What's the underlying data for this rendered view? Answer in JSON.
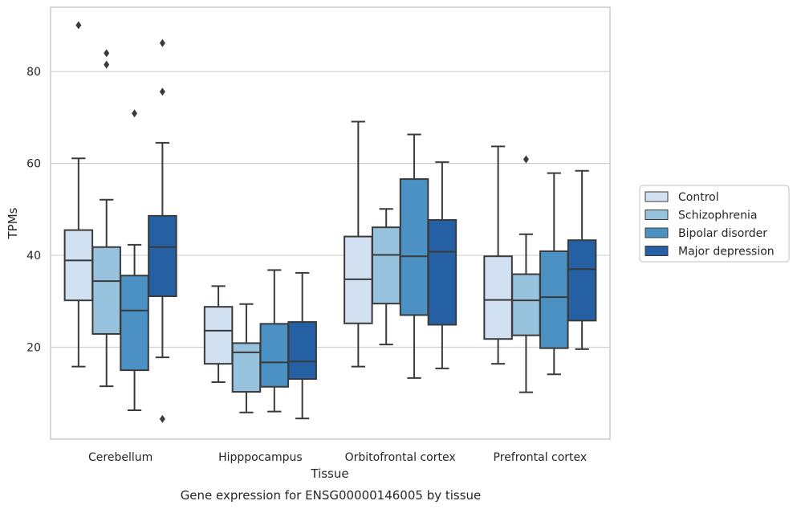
{
  "chart_data": {
    "type": "box",
    "title": "",
    "caption": "Gene expression for ENSG00000146005 by tissue",
    "xlabel": "Tissue",
    "ylabel": "TPMs",
    "ylim": [
      0,
      94
    ],
    "yticks": [
      20,
      40,
      60,
      80
    ],
    "grid": "horizontal",
    "legend_position": "right",
    "colors": {
      "Control": "#d2e1f1",
      "Schizophrenia": "#98c3df",
      "Bipolar disorder": "#4b91c3",
      "Major depression": "#2460a3",
      "line": "#3a3a3a",
      "grid": "#d0d0d0",
      "frame": "#cccccc"
    },
    "categories": [
      "Cerebellum",
      "Hipppocampus",
      "Orbitofrontal cortex",
      "Prefrontal cortex"
    ],
    "series": [
      {
        "name": "Control",
        "boxes": [
          {
            "whisker_low": 15.8,
            "q1": 30.2,
            "median": 38.9,
            "q3": 45.5,
            "whisker_high": 61.1,
            "outliers": [
              90.1
            ]
          },
          {
            "whisker_low": 12.4,
            "q1": 16.4,
            "median": 23.6,
            "q3": 28.8,
            "whisker_high": 33.3,
            "outliers": []
          },
          {
            "whisker_low": 15.8,
            "q1": 25.2,
            "median": 34.8,
            "q3": 44.1,
            "whisker_high": 69.1,
            "outliers": []
          },
          {
            "whisker_low": 16.4,
            "q1": 21.8,
            "median": 30.3,
            "q3": 39.8,
            "whisker_high": 63.7,
            "outliers": []
          }
        ]
      },
      {
        "name": "Schizophrenia",
        "boxes": [
          {
            "whisker_low": 11.5,
            "q1": 22.9,
            "median": 34.4,
            "q3": 41.8,
            "whisker_high": 52.1,
            "outliers": [
              84.0,
              81.5
            ]
          },
          {
            "whisker_low": 5.8,
            "q1": 10.3,
            "median": 18.9,
            "q3": 20.9,
            "whisker_high": 29.4,
            "outliers": []
          },
          {
            "whisker_low": 20.6,
            "q1": 29.5,
            "median": 40.1,
            "q3": 46.1,
            "whisker_high": 50.1,
            "outliers": []
          },
          {
            "whisker_low": 10.2,
            "q1": 22.6,
            "median": 30.2,
            "q3": 35.9,
            "whisker_high": 44.6,
            "outliers": [
              60.9
            ]
          }
        ]
      },
      {
        "name": "Bipolar disorder",
        "boxes": [
          {
            "whisker_low": 6.3,
            "q1": 15.0,
            "median": 28.0,
            "q3": 35.6,
            "whisker_high": 42.3,
            "outliers": [
              70.9
            ]
          },
          {
            "whisker_low": 6.0,
            "q1": 11.4,
            "median": 16.7,
            "q3": 25.1,
            "whisker_high": 36.8,
            "outliers": []
          },
          {
            "whisker_low": 13.3,
            "q1": 27.0,
            "median": 39.8,
            "q3": 56.6,
            "whisker_high": 66.3,
            "outliers": []
          },
          {
            "whisker_low": 14.1,
            "q1": 19.8,
            "median": 30.9,
            "q3": 40.9,
            "whisker_high": 57.9,
            "outliers": []
          }
        ]
      },
      {
        "name": "Major depression",
        "boxes": [
          {
            "whisker_low": 17.8,
            "q1": 31.1,
            "median": 41.8,
            "q3": 48.6,
            "whisker_high": 64.5,
            "outliers": [
              86.2,
              75.6,
              4.4
            ]
          },
          {
            "whisker_low": 4.5,
            "q1": 13.1,
            "median": 16.9,
            "q3": 25.5,
            "whisker_high": 36.2,
            "outliers": []
          },
          {
            "whisker_low": 15.4,
            "q1": 24.9,
            "median": 40.8,
            "q3": 47.7,
            "whisker_high": 60.3,
            "outliers": []
          },
          {
            "whisker_low": 19.6,
            "q1": 25.8,
            "median": 37.0,
            "q3": 43.3,
            "whisker_high": 58.4,
            "outliers": []
          }
        ]
      }
    ]
  }
}
